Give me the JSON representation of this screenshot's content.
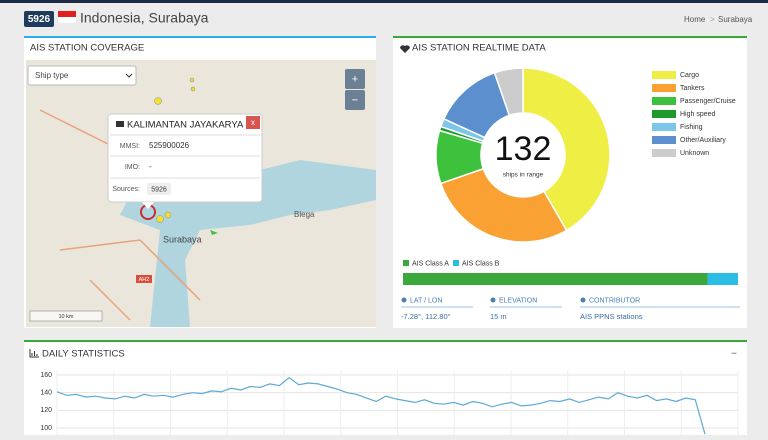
{
  "header": {
    "station_id": "5926",
    "title": "Indonesia, Surabaya",
    "breadcrumb": [
      "Home",
      "Surabaya"
    ]
  },
  "coverage": {
    "title": "AIS STATION COVERAGE",
    "select": "Ship type",
    "zoom_in": "+",
    "zoom_out": "−",
    "map_labels": [
      "Surabaya",
      "Blega",
      "AH2",
      "10 km"
    ],
    "popup": {
      "name": "KALIMANTAN JAYAKARYA",
      "close": "x",
      "fields": [
        {
          "label": "MMSI:",
          "value": "525900026"
        },
        {
          "label": "IMO:",
          "value": "-"
        },
        {
          "label": "Sources:",
          "value": "5926"
        }
      ]
    }
  },
  "realtime": {
    "title": "AIS STATION REALTIME DATA",
    "total": "132",
    "total_caption": "ships in range",
    "info": [
      {
        "label": "LAT / LON",
        "value": "-7.28°, 112.80°"
      },
      {
        "label": "ELEVATION",
        "value": "15 m"
      },
      {
        "label": "CONTRIBUTOR",
        "value": "AIS PPNS stations"
      }
    ]
  },
  "statistics": {
    "title": "DAILY STATISTICS",
    "collapse": "−"
  },
  "chart_data": [
    {
      "type": "doughnut",
      "categories": [
        "Cargo",
        "Tankers",
        "Passenger/Cruise",
        "High speed",
        "Fishing",
        "Other/Auxiliary",
        "Unknown"
      ],
      "colors": [
        "#eeee44",
        "#f9a132",
        "#3ec23e",
        "#1e9a2a",
        "#7cc6ea",
        "#5b8fce",
        "#cccccc"
      ],
      "values": [
        55,
        37,
        13,
        1,
        2,
        17,
        7
      ]
    },
    {
      "type": "stacked-bar",
      "series": [
        {
          "name": "AIS Class A",
          "color": "#3aa83a",
          "values": [
            120
          ]
        },
        {
          "name": "AIS Class B",
          "color": "#2bbde3",
          "values": [
            12
          ]
        }
      ]
    },
    {
      "type": "line",
      "color": "#5fa9d6",
      "grid": true,
      "ylim": [
        93,
        165
      ],
      "yticks": [
        100,
        120,
        140,
        160
      ],
      "values": [
        141,
        137,
        138,
        135,
        136,
        134,
        133,
        136,
        134,
        138,
        136,
        137,
        135,
        138,
        140,
        139,
        142,
        141,
        145,
        143,
        147,
        146,
        150,
        148,
        157,
        149,
        151,
        150,
        147,
        144,
        140,
        138,
        134,
        130,
        136,
        133,
        131,
        129,
        132,
        128,
        127,
        129,
        126,
        130,
        128,
        124,
        127,
        129,
        125,
        126,
        128,
        131,
        130,
        133,
        129,
        132,
        135,
        133,
        140,
        136,
        134,
        137,
        131,
        133,
        130,
        134,
        132,
        93
      ]
    }
  ]
}
